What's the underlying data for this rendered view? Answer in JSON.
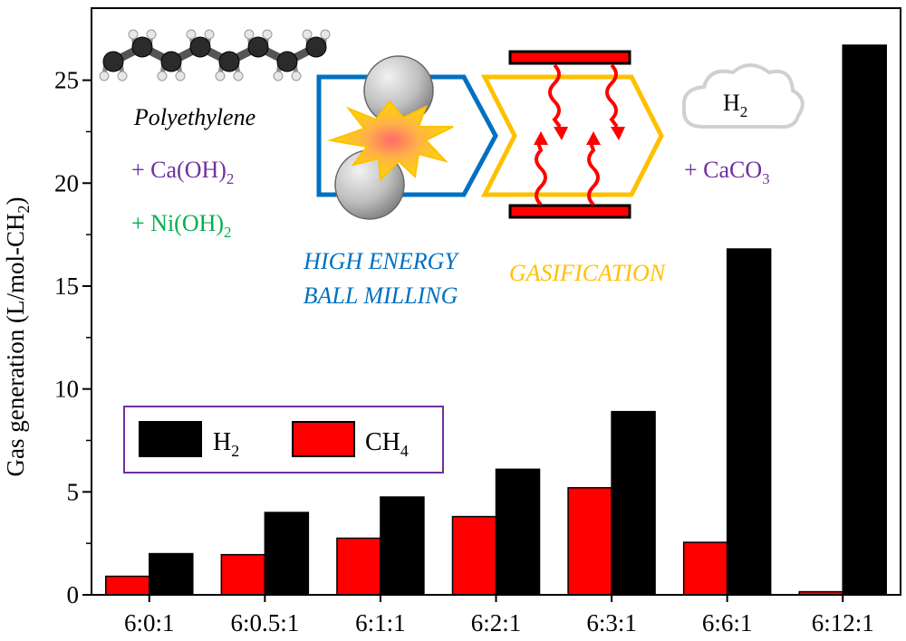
{
  "chart_data": {
    "type": "bar",
    "ylabel": "Gas generation (L/mol-CH",
    "ylabel_sub": "2",
    "ylabel_tail": ")",
    "ylim": [
      0,
      28.5
    ],
    "yticks": [
      0,
      5,
      10,
      15,
      20,
      25
    ],
    "ytick_labels": [
      "0",
      "5",
      "10",
      "15",
      "20",
      "25"
    ],
    "categories": [
      "6:0:1",
      "6:0.5:1",
      "6:1:1",
      "6:2:1",
      "6:3:1",
      "6:6:1",
      "6:12:1"
    ],
    "series": [
      {
        "name": "CH4",
        "label": "CH",
        "sub": "4",
        "color": "#ff0000",
        "values": [
          0.9,
          1.95,
          2.75,
          3.8,
          5.2,
          2.55,
          0.15
        ]
      },
      {
        "name": "H2",
        "label": "H",
        "sub": "2",
        "color": "#000000",
        "values": [
          2.0,
          4.0,
          4.75,
          6.1,
          8.9,
          16.8,
          26.7
        ]
      }
    ],
    "legend_position": "lower-left"
  },
  "inset": {
    "polymer_label": "Polyethylene",
    "additive1": "+ Ca(OH)",
    "additive1_sub": "2",
    "additive2": "+ Ni(OH)",
    "additive2_sub": "2",
    "milling_line1": "HIGH ENERGY",
    "milling_line2": "BALL MILLING",
    "gasification": "GASIFICATION",
    "product": "H",
    "product_sub": "2",
    "byproduct": "+ CaCO",
    "byproduct_sub": "3"
  },
  "colors": {
    "purple": "#7030a0",
    "green": "#00b050",
    "blue": "#0070c0",
    "orange": "#ffc000",
    "red": "#ff0000"
  }
}
